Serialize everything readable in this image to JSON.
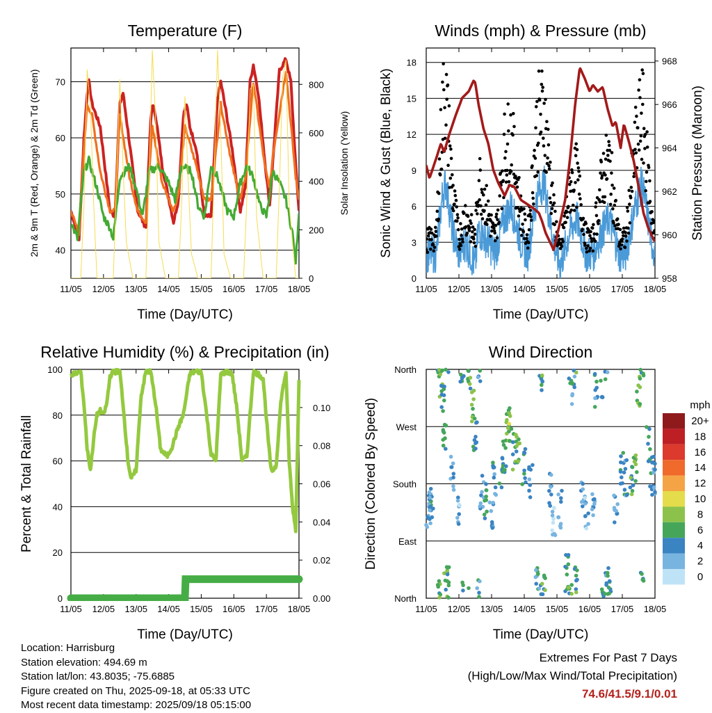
{
  "info": {
    "location": "Location: Harrisburg",
    "elevation": "Station elevation: 494.69 m",
    "latlon": "Station lat/lon: 43.8035; -75.6885",
    "created": "Figure created on Thu, 2025-09-18, at 05:33 UTC",
    "recent": "Most recent data timestamp: 2025/09/18 05:15:00"
  },
  "extremes": {
    "title": "Extremes For Past 7 Days",
    "subtitle": "(High/Low/Max Wind/Total Precipitation)",
    "values": "74.6/41.5/9.1/0.01"
  },
  "chart_data": [
    {
      "type": "line",
      "title": "Temperature (F)",
      "xlabel": "Time (Day/UTC)",
      "ylabel": "2m & 9m T (Red, Orange) & 2m Td (Green)",
      "ylabel_right": "Solar Insolation (Yellow)",
      "x_ticks": [
        "11/05",
        "12/05",
        "13/05",
        "14/05",
        "15/05",
        "16/05",
        "17/05",
        "18/05"
      ],
      "ylim": [
        35,
        76
      ],
      "y_ticks": [
        40,
        50,
        60,
        70
      ],
      "ylim_right": [
        0,
        950
      ],
      "y_ticks_right": [
        0,
        200,
        400,
        600,
        800
      ],
      "colors": {
        "t2m": "#cc2222",
        "t9m": "#f07020",
        "td": "#44aa33",
        "solar": "#f5dc50"
      },
      "series": [
        {
          "name": "2m T",
          "key": "t2m",
          "x": [
            0,
            0.25,
            0.4,
            0.5,
            0.55,
            0.65,
            0.9,
            1.2,
            1.35,
            1.5,
            1.6,
            1.8,
            2.05,
            2.3,
            2.45,
            2.5,
            2.6,
            2.8,
            3.15,
            3.3,
            3.45,
            3.55,
            3.65,
            3.85,
            4.1,
            4.3,
            4.5,
            4.6,
            4.75,
            4.95,
            5.2,
            5.35,
            5.5,
            5.6,
            5.75,
            5.95,
            6.1,
            6.2,
            6.4,
            6.6,
            6.75,
            6.9,
            7.0
          ],
          "y": [
            47,
            42,
            60,
            68,
            70,
            66,
            62,
            47,
            46,
            66,
            68,
            59,
            47,
            44,
            63,
            66,
            64,
            55,
            45,
            49,
            64,
            66,
            62,
            58,
            46,
            46,
            67,
            70,
            65,
            58,
            47,
            51,
            70,
            73,
            68,
            56,
            48,
            56,
            72,
            74,
            70,
            55,
            47
          ]
        },
        {
          "name": "9m T",
          "key": "t9m",
          "x": [
            0,
            0.25,
            0.4,
            0.5,
            0.65,
            0.9,
            1.2,
            1.35,
            1.5,
            1.8,
            2.05,
            2.3,
            2.5,
            2.8,
            3.15,
            3.3,
            3.5,
            3.85,
            4.1,
            4.3,
            4.6,
            4.95,
            5.2,
            5.35,
            5.6,
            5.95,
            6.1,
            6.2,
            6.6,
            6.9,
            7.0
          ],
          "y": [
            47,
            43,
            58,
            66,
            64,
            54,
            47,
            47,
            64,
            53,
            47,
            45,
            62,
            52,
            47,
            50,
            62,
            55,
            49,
            49,
            66,
            55,
            49,
            53,
            70,
            55,
            51,
            57,
            72,
            53,
            49
          ]
        },
        {
          "name": "2m Td",
          "key": "td",
          "x": [
            0,
            0.2,
            0.4,
            0.55,
            0.8,
            1.0,
            1.2,
            1.3,
            1.5,
            1.8,
            2.0,
            2.2,
            2.4,
            2.7,
            3.0,
            3.2,
            3.4,
            3.7,
            3.9,
            4.1,
            4.3,
            4.5,
            4.8,
            5.0,
            5.2,
            5.4,
            5.6,
            5.8,
            6.0,
            6.2,
            6.4,
            6.6,
            6.8,
            6.9,
            7.0
          ],
          "y": [
            45,
            42,
            54,
            56,
            51,
            46,
            44,
            42,
            53,
            55,
            51,
            46,
            54,
            55,
            52,
            49,
            55,
            54,
            48,
            46,
            55,
            53,
            47,
            46,
            52,
            55,
            53,
            48,
            46,
            54,
            52,
            49,
            43,
            38,
            47
          ]
        },
        {
          "name": "Solar",
          "key": "solar",
          "x": [
            0,
            0.3,
            0.4,
            0.5,
            0.6,
            0.7,
            0.8,
            1.0,
            1.3,
            1.4,
            1.5,
            1.6,
            1.7,
            1.9,
            2.3,
            2.4,
            2.5,
            2.6,
            2.7,
            2.9,
            3.3,
            3.4,
            3.5,
            3.6,
            3.7,
            3.9,
            4.3,
            4.4,
            4.5,
            4.6,
            4.7,
            4.9,
            5.3,
            5.4,
            5.5,
            5.6,
            5.7,
            5.9,
            6.3,
            6.4,
            6.5,
            6.6,
            6.7,
            6.9,
            7.0
          ],
          "y": [
            0,
            0,
            300,
            860,
            700,
            300,
            0,
            0,
            0,
            380,
            820,
            460,
            150,
            0,
            0,
            420,
            940,
            650,
            150,
            0,
            0,
            310,
            750,
            400,
            100,
            0,
            0,
            450,
            940,
            600,
            100,
            0,
            0,
            330,
            780,
            800,
            250,
            0,
            0,
            380,
            830,
            900,
            300,
            0,
            0
          ]
        }
      ]
    },
    {
      "type": "scatter",
      "title": "Winds (mph) & Pressure (mb)",
      "xlabel": "Time (Day/UTC)",
      "ylabel": "Sonic Wind & Gust (Blue, Black)",
      "ylabel_right": "Station Pressure (Maroon)",
      "x_ticks": [
        "11/05",
        "12/05",
        "13/05",
        "14/05",
        "15/05",
        "16/05",
        "17/05",
        "18/05"
      ],
      "ylim": [
        0,
        19.2
      ],
      "y_ticks": [
        0,
        3,
        6,
        9,
        12,
        15,
        18
      ],
      "ylim_right": [
        958,
        968.6
      ],
      "y_ticks_right": [
        958,
        960,
        962,
        964,
        966,
        968
      ],
      "colors": {
        "wind": "#4a9ad8",
        "gust": "#000000",
        "pressure": "#a31a1a"
      },
      "series": [
        {
          "name": "Pressure",
          "key": "pressure",
          "x": [
            0,
            0.1,
            0.3,
            0.45,
            0.55,
            0.7,
            0.9,
            1.1,
            1.3,
            1.45,
            1.5,
            1.6,
            1.75,
            1.9,
            2.05,
            2.2,
            2.4,
            2.55,
            2.7,
            2.9,
            3.1,
            3.3,
            3.45,
            3.55,
            3.65,
            3.9,
            4.1,
            4.25,
            4.4,
            4.55,
            4.7,
            4.85,
            5.0,
            5.1,
            5.25,
            5.4,
            5.55,
            5.7,
            5.8,
            5.95,
            6.05,
            6.2,
            6.35,
            6.5,
            6.65,
            6.8,
            6.95,
            7.0
          ],
          "y": [
            963.2,
            962.6,
            963.5,
            964.2,
            963.8,
            964.6,
            965.5,
            966.3,
            966.6,
            967.1,
            967.0,
            966.0,
            964.9,
            964.2,
            963.0,
            962.4,
            961.8,
            962.3,
            962.2,
            961.6,
            961.4,
            961.2,
            961.0,
            960.6,
            960.1,
            959.3,
            960.6,
            961.6,
            963.5,
            965.9,
            967.7,
            967.2,
            966.6,
            966.9,
            966.6,
            966.8,
            965.8,
            965.0,
            965.2,
            964.0,
            965.1,
            964.3,
            963.4,
            962.2,
            961.0,
            960.3,
            959.8,
            959.7
          ]
        },
        {
          "name": "Wind",
          "key": "wind",
          "x": [
            0,
            0.3,
            0.5,
            0.6,
            0.8,
            1.0,
            1.2,
            1.5,
            1.6,
            1.9,
            2.1,
            2.4,
            2.6,
            2.9,
            3.1,
            3.4,
            3.6,
            3.9,
            4.1,
            4.4,
            4.6,
            4.9,
            5.1,
            5.4,
            5.6,
            5.9,
            6.1,
            6.4,
            6.6,
            6.9,
            7.0
          ],
          "y": [
            2,
            2,
            7,
            8,
            4,
            2,
            3,
            1,
            4,
            3,
            2,
            5,
            6,
            3,
            2,
            7,
            8,
            3,
            1,
            4,
            5,
            2,
            2,
            4,
            5,
            2,
            2,
            6,
            8,
            3,
            2
          ]
        },
        {
          "name": "Gust",
          "key": "gust",
          "x": [
            0,
            0.3,
            0.5,
            0.6,
            0.8,
            1.0,
            1.2,
            1.5,
            1.6,
            1.9,
            2.1,
            2.4,
            2.6,
            2.9,
            3.1,
            3.4,
            3.6,
            3.9,
            4.1,
            4.4,
            4.6,
            4.9,
            5.1,
            5.4,
            5.6,
            5.9,
            6.1,
            6.4,
            6.6,
            6.9,
            7.0
          ],
          "y": [
            3,
            3,
            13,
            14,
            7,
            3,
            5,
            3,
            8,
            5,
            3,
            10,
            11,
            5,
            3,
            12,
            13,
            5,
            2,
            7,
            8,
            3,
            3,
            8,
            9,
            3,
            3,
            10,
            13,
            5,
            3
          ]
        }
      ]
    },
    {
      "type": "line",
      "title": "Relative Humidity (%) & Precipitation (in)",
      "xlabel": "Time (Day/UTC)",
      "ylabel": "Percent & Total Rainfall",
      "x_ticks": [
        "11/05",
        "12/05",
        "13/05",
        "14/05",
        "15/05",
        "16/05",
        "17/05",
        "18/05"
      ],
      "ylim": [
        0,
        100
      ],
      "y_ticks": [
        0,
        20,
        40,
        60,
        80,
        100
      ],
      "ylim_right": [
        0,
        0.12
      ],
      "y_ticks_right": [
        "0.00",
        "0.02",
        "0.04",
        "0.06",
        "0.08",
        "0.10"
      ],
      "colors": {
        "rh": "#94c93f",
        "precip": "#46ad46"
      },
      "series": [
        {
          "name": "RH",
          "key": "rh",
          "x": [
            0,
            0.1,
            0.3,
            0.4,
            0.5,
            0.6,
            0.7,
            0.8,
            0.9,
            1.0,
            1.1,
            1.2,
            1.3,
            1.5,
            1.6,
            1.75,
            1.85,
            2.0,
            2.15,
            2.3,
            2.45,
            2.6,
            2.75,
            2.95,
            3.1,
            3.3,
            3.45,
            3.65,
            3.8,
            4.0,
            4.15,
            4.3,
            4.45,
            4.6,
            4.8,
            4.95,
            5.1,
            5.25,
            5.4,
            5.6,
            5.75,
            5.9,
            6.05,
            6.15,
            6.3,
            6.45,
            6.6,
            6.7,
            6.8,
            6.9,
            7.0
          ],
          "y": [
            98,
            98,
            99,
            85,
            65,
            56,
            70,
            80,
            82,
            80,
            85,
            97,
            99,
            99,
            85,
            60,
            52,
            56,
            88,
            99,
            99,
            85,
            65,
            62,
            66,
            75,
            80,
            98,
            99,
            99,
            82,
            63,
            60,
            98,
            99,
            98,
            82,
            60,
            62,
            99,
            98,
            96,
            70,
            55,
            58,
            87,
            99,
            60,
            40,
            30,
            95
          ]
        },
        {
          "name": "Precipitation",
          "key": "precip",
          "x": [
            0,
            3.5,
            3.52,
            7.0
          ],
          "y": [
            0,
            0,
            0.01,
            0.01
          ]
        }
      ]
    },
    {
      "type": "scatter",
      "title": "Wind Direction",
      "xlabel": "Time (Day/UTC)",
      "ylabel": "Direction (Colored By Speed)",
      "x_ticks": [
        "11/05",
        "12/05",
        "13/05",
        "14/05",
        "15/05",
        "16/05",
        "17/05",
        "18/05"
      ],
      "y_ticks": [
        "North",
        "East",
        "South",
        "West",
        "North"
      ],
      "ylim": [
        0,
        360
      ],
      "legend": {
        "title": "mph",
        "labels": [
          "20+",
          "18",
          "16",
          "14",
          "12",
          "10",
          "8",
          "6",
          "4",
          "2",
          "0"
        ],
        "colors": [
          "#8e1a1c",
          "#bd1f24",
          "#dc3a2c",
          "#ef6a2b",
          "#f5a445",
          "#e4dc4a",
          "#8cc24b",
          "#45a65a",
          "#3a84c2",
          "#78b4e0",
          "#bfe3f6"
        ]
      },
      "series": [
        {
          "name": "Direction",
          "x": [
            0.05,
            0.1,
            0.15,
            0.4,
            0.45,
            0.5,
            0.55,
            0.6,
            0.65,
            0.8,
            1.0,
            1.1,
            1.3,
            1.45,
            1.5,
            1.6,
            1.7,
            1.8,
            2.0,
            2.1,
            2.3,
            2.4,
            2.5,
            2.55,
            2.7,
            2.8,
            3.0,
            3.2,
            3.4,
            3.5,
            3.6,
            3.8,
            3.9,
            4.1,
            4.3,
            4.4,
            4.5,
            4.6,
            4.8,
            4.9,
            5.1,
            5.2,
            5.4,
            5.5,
            5.6,
            5.8,
            6.0,
            6.1,
            6.3,
            6.4,
            6.5,
            6.6,
            6.8,
            6.9,
            6.95
          ],
          "y": [
            140,
            150,
            145,
            10,
            345,
            320,
            250,
            15,
            20,
            200,
            130,
            10,
            350,
            300,
            260,
            10,
            170,
            150,
            130,
            190,
            200,
            220,
            270,
            275,
            230,
            240,
            205,
            180,
            20,
            355,
            10,
            170,
            120,
            140,
            40,
            355,
            330,
            20,
            155,
            130,
            140,
            330,
            345,
            10,
            25,
            140,
            210,
            190,
            180,
            200,
            330,
            20,
            240,
            200,
            190
          ],
          "speed": [
            3,
            4,
            3,
            6,
            7,
            5,
            6,
            7,
            5,
            3,
            2,
            5,
            6,
            7,
            5,
            4,
            3,
            5,
            4,
            4,
            5,
            5,
            8,
            8,
            6,
            7,
            5,
            3,
            4,
            5,
            6,
            3,
            2,
            3,
            5,
            6,
            4,
            6,
            3,
            2,
            3,
            4,
            5,
            4,
            5,
            3,
            5,
            4,
            6,
            7,
            7,
            6,
            5,
            4,
            3
          ]
        }
      ]
    }
  ]
}
